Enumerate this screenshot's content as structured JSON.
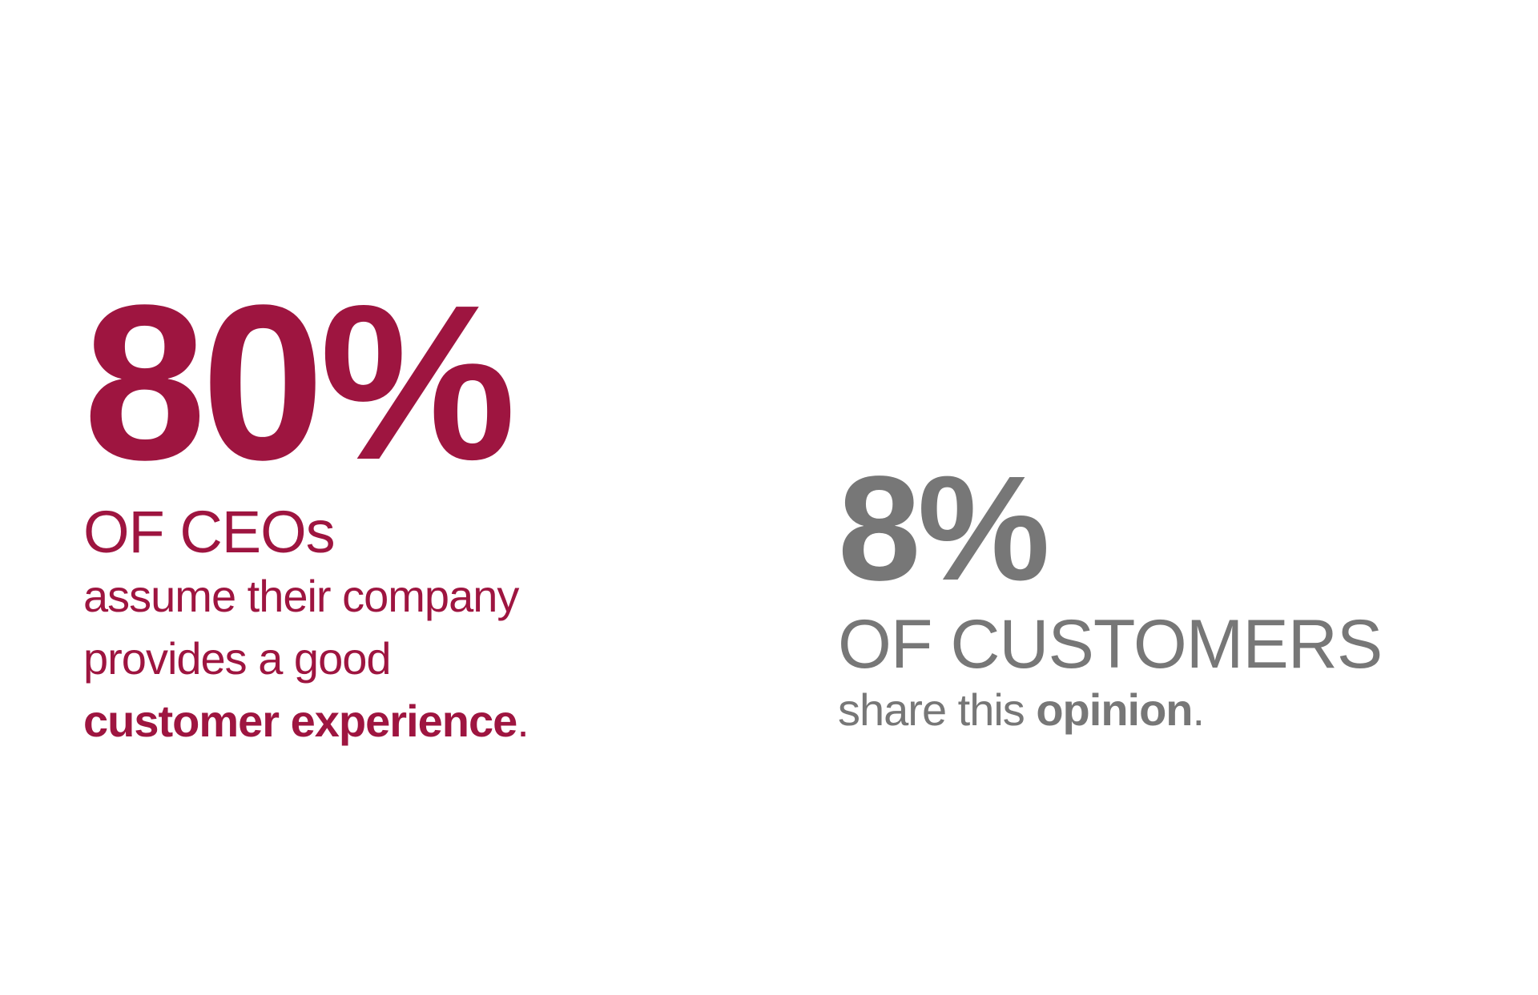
{
  "colors": {
    "accent": "#9E1540",
    "neutral": "#777777"
  },
  "left_stat": {
    "value": "80%",
    "subject": "OF CEOs",
    "line1": "assume their company",
    "line2": "provides a good",
    "line3_bold": "customer experience",
    "line3_end": "."
  },
  "right_stat": {
    "value": "8%",
    "subject": "OF CUSTOMERS",
    "text": "share this ",
    "text_bold": "opinion",
    "text_end": "."
  }
}
